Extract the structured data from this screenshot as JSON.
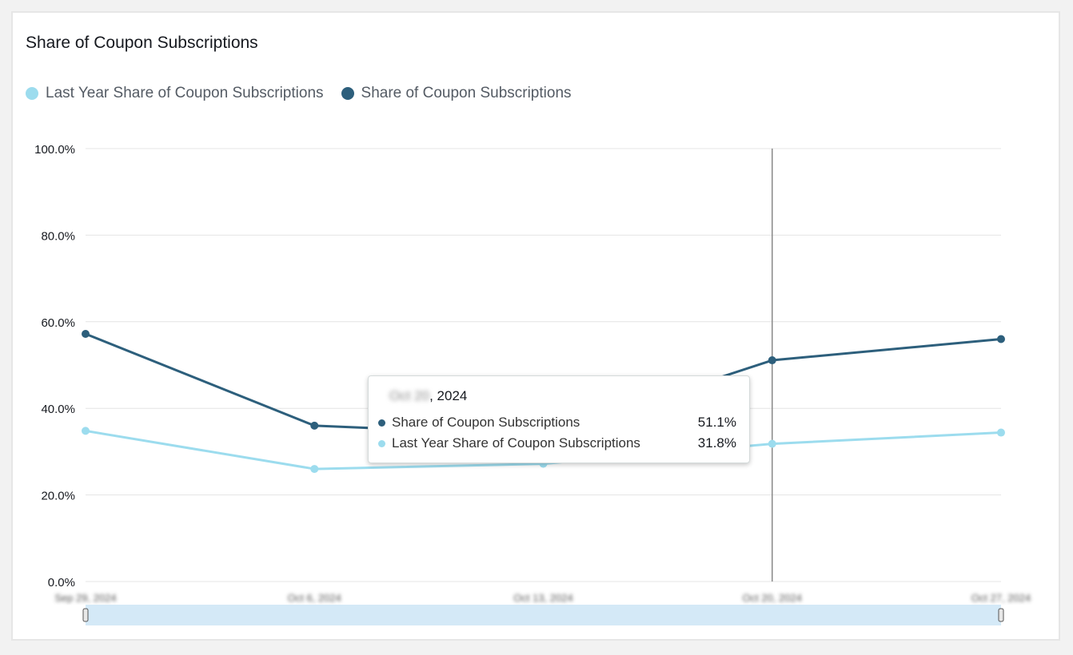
{
  "title": "Share of Coupon Subscriptions",
  "colors": {
    "current": "#2d5f7c",
    "last_year": "#9cdcee",
    "grid": "#e4e4e4",
    "crosshair": "#8a8a8a",
    "scrollbar": "#d4e9f7"
  },
  "legend": [
    {
      "label": "Last Year Share of Coupon Subscriptions",
      "color": "#9cdcee"
    },
    {
      "label": "Share of Coupon Subscriptions",
      "color": "#2d5f7c"
    }
  ],
  "tooltip": {
    "date_blurred": "Oct 20",
    "date_year": ", 2024",
    "rows": [
      {
        "label": "Share of Coupon Subscriptions",
        "value": "51.1%",
        "color": "#2d5f7c"
      },
      {
        "label": "Last Year Share of Coupon Subscriptions",
        "value": "31.8%",
        "color": "#9cdcee"
      }
    ]
  },
  "chart_data": {
    "type": "line",
    "title": "Share of Coupon Subscriptions",
    "categories": [
      "Sep 29, 2024",
      "Oct 6, 2024",
      "Oct 13, 2024",
      "Oct 20, 2024",
      "Oct 27, 2024"
    ],
    "series": [
      {
        "name": "Share of Coupon Subscriptions",
        "values": [
          57.2,
          36.0,
          33.8,
          51.1,
          56.0
        ]
      },
      {
        "name": "Last Year Share of Coupon Subscriptions",
        "values": [
          34.8,
          26.0,
          27.2,
          31.8,
          34.4
        ]
      }
    ],
    "ylim": [
      0,
      100
    ],
    "yticks": [
      "0.0%",
      "20.0%",
      "40.0%",
      "60.0%",
      "80.0%",
      "100.0%"
    ],
    "ytick_values": [
      0,
      20,
      40,
      60,
      80,
      100
    ],
    "grid": true,
    "legend_position": "top-left",
    "highlighted_category": "Oct 20, 2024"
  }
}
